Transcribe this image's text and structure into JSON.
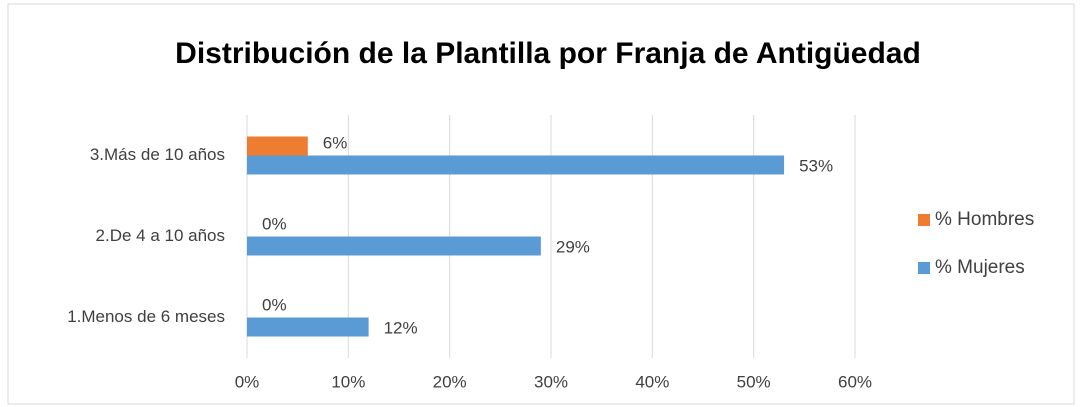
{
  "chart_data": {
    "type": "bar",
    "orientation": "horizontal",
    "title": "Distribución de la Plantilla por Franja de Antigüedad",
    "categories": [
      "1.Menos de 6 meses",
      "2.De 4 a 10 años",
      "3.Más de 10 años"
    ],
    "series": [
      {
        "name": "% Hombres",
        "color": "#ed7d31",
        "values": [
          0,
          0,
          6
        ],
        "value_labels": [
          "0%",
          "0%",
          "6%"
        ]
      },
      {
        "name": "% Mujeres",
        "color": "#5b9bd5",
        "values": [
          12,
          29,
          53
        ],
        "value_labels": [
          "12%",
          "29%",
          "53%"
        ]
      }
    ],
    "xlim": [
      0,
      60
    ],
    "xticks": [
      {
        "value": 0,
        "label": "0%"
      },
      {
        "value": 10,
        "label": "10%"
      },
      {
        "value": 20,
        "label": "20%"
      },
      {
        "value": 30,
        "label": "30%"
      },
      {
        "value": 40,
        "label": "40%"
      },
      {
        "value": 50,
        "label": "50%"
      },
      {
        "value": 60,
        "label": "60%"
      }
    ],
    "grid": true,
    "legend": "right"
  }
}
